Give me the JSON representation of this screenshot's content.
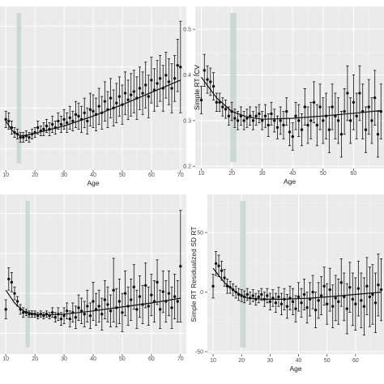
{
  "chart_data": [
    {
      "type": "scatter",
      "xlabel": "Age",
      "ylabel": "",
      "xlim": [
        8,
        72
      ],
      "ylim": [
        0,
        1
      ],
      "x_ticks": [
        10,
        20,
        30,
        40,
        50,
        60,
        70
      ],
      "y_ticks": [],
      "shaded_band": [
        13.7,
        15.3
      ],
      "x": [
        10,
        11,
        12,
        13,
        14,
        15,
        16,
        17,
        18,
        19,
        20,
        21,
        22,
        23,
        24,
        25,
        26,
        27,
        28,
        29,
        30,
        31,
        32,
        33,
        34,
        35,
        36,
        37,
        38,
        39,
        40,
        41,
        42,
        43,
        44,
        45,
        46,
        47,
        48,
        49,
        50,
        51,
        52,
        53,
        54,
        55,
        56,
        57,
        58,
        59,
        60,
        61,
        62,
        63,
        64,
        65,
        66,
        67,
        68,
        69,
        70
      ],
      "y": [
        0.31,
        0.3,
        0.26,
        0.23,
        0.22,
        0.2,
        0.2,
        0.21,
        0.2,
        0.22,
        0.23,
        0.26,
        0.24,
        0.25,
        0.27,
        0.25,
        0.28,
        0.26,
        0.3,
        0.28,
        0.31,
        0.29,
        0.32,
        0.3,
        0.34,
        0.33,
        0.31,
        0.35,
        0.3,
        0.37,
        0.36,
        0.34,
        0.39,
        0.35,
        0.42,
        0.37,
        0.44,
        0.38,
        0.41,
        0.45,
        0.4,
        0.47,
        0.43,
        0.46,
        0.48,
        0.44,
        0.5,
        0.47,
        0.52,
        0.45,
        0.55,
        0.49,
        0.53,
        0.56,
        0.5,
        0.58,
        0.54,
        0.5,
        0.56,
        0.64,
        0.63
      ],
      "err": [
        0.05,
        0.05,
        0.04,
        0.03,
        0.03,
        0.03,
        0.03,
        0.03,
        0.03,
        0.03,
        0.03,
        0.04,
        0.03,
        0.04,
        0.04,
        0.04,
        0.05,
        0.04,
        0.05,
        0.05,
        0.06,
        0.06,
        0.07,
        0.06,
        0.08,
        0.08,
        0.08,
        0.09,
        0.08,
        0.1,
        0.1,
        0.1,
        0.11,
        0.1,
        0.12,
        0.11,
        0.12,
        0.11,
        0.12,
        0.12,
        0.12,
        0.13,
        0.12,
        0.13,
        0.13,
        0.13,
        0.13,
        0.13,
        0.14,
        0.13,
        0.14,
        0.13,
        0.14,
        0.14,
        0.14,
        0.14,
        0.14,
        0.15,
        0.14,
        0.16,
        0.28
      ],
      "fit": [
        [
          10,
          0.3
        ],
        [
          12,
          0.245
        ],
        [
          14,
          0.215
        ],
        [
          16,
          0.21
        ],
        [
          20,
          0.225
        ],
        [
          30,
          0.27
        ],
        [
          40,
          0.33
        ],
        [
          50,
          0.4
        ],
        [
          60,
          0.475
        ],
        [
          70,
          0.55
        ]
      ]
    },
    {
      "type": "scatter",
      "xlabel": "Age",
      "ylabel": "Simple RT ICV",
      "xlim": [
        8,
        70
      ],
      "ylim": [
        0.195,
        0.55
      ],
      "x_ticks": [
        10,
        20,
        30,
        40,
        50,
        60
      ],
      "y_ticks": [
        0.2,
        0.3,
        0.4,
        0.5
      ],
      "shaded_band": [
        19.5,
        21.5
      ],
      "x": [
        10,
        11,
        12,
        13,
        14,
        15,
        16,
        17,
        18,
        19,
        20,
        21,
        22,
        23,
        24,
        25,
        26,
        27,
        28,
        29,
        30,
        31,
        32,
        33,
        34,
        35,
        36,
        37,
        38,
        39,
        40,
        41,
        42,
        43,
        44,
        45,
        46,
        47,
        48,
        49,
        50,
        51,
        52,
        53,
        54,
        55,
        56,
        57,
        58,
        59,
        60,
        61,
        62,
        63,
        64,
        65,
        66,
        67,
        68,
        69
      ],
      "y": [
        0.345,
        0.41,
        0.39,
        0.385,
        0.375,
        0.34,
        0.34,
        0.33,
        0.325,
        0.31,
        0.32,
        0.305,
        0.3,
        0.31,
        0.3,
        0.305,
        0.31,
        0.3,
        0.31,
        0.315,
        0.3,
        0.31,
        0.29,
        0.315,
        0.3,
        0.285,
        0.3,
        0.29,
        0.32,
        0.275,
        0.265,
        0.31,
        0.3,
        0.28,
        0.33,
        0.29,
        0.3,
        0.34,
        0.29,
        0.33,
        0.3,
        0.31,
        0.28,
        0.33,
        0.31,
        0.3,
        0.27,
        0.32,
        0.36,
        0.3,
        0.34,
        0.31,
        0.36,
        0.32,
        0.28,
        0.33,
        0.3,
        0.35,
        0.27,
        0.32
      ],
      "err": [
        0.03,
        0.035,
        0.03,
        0.03,
        0.03,
        0.02,
        0.02,
        0.02,
        0.02,
        0.02,
        0.02,
        0.02,
        0.02,
        0.02,
        0.02,
        0.02,
        0.02,
        0.02,
        0.02,
        0.02,
        0.02,
        0.025,
        0.025,
        0.025,
        0.025,
        0.025,
        0.03,
        0.03,
        0.03,
        0.03,
        0.03,
        0.03,
        0.035,
        0.035,
        0.04,
        0.04,
        0.04,
        0.045,
        0.045,
        0.05,
        0.05,
        0.05,
        0.05,
        0.05,
        0.05,
        0.05,
        0.05,
        0.05,
        0.06,
        0.05,
        0.06,
        0.05,
        0.06,
        0.06,
        0.05,
        0.06,
        0.05,
        0.06,
        0.05,
        0.06
      ],
      "fit": [
        [
          10,
          0.395
        ],
        [
          15,
          0.35
        ],
        [
          20,
          0.32
        ],
        [
          25,
          0.308
        ],
        [
          30,
          0.303
        ],
        [
          40,
          0.305
        ],
        [
          50,
          0.31
        ],
        [
          60,
          0.316
        ],
        [
          69,
          0.322
        ]
      ]
    },
    {
      "type": "scatter",
      "xlabel": "",
      "ylabel": "",
      "xlim": [
        8,
        72
      ],
      "ylim": [
        0,
        1
      ],
      "x_ticks": [
        10,
        20,
        30,
        40,
        50,
        60,
        70
      ],
      "y_ticks": [],
      "shaded_band": [
        16.8,
        18.2
      ],
      "x": [
        10,
        11,
        12,
        13,
        14,
        15,
        16,
        17,
        18,
        19,
        20,
        21,
        22,
        23,
        24,
        25,
        26,
        27,
        28,
        29,
        30,
        31,
        32,
        33,
        34,
        35,
        36,
        37,
        38,
        39,
        40,
        41,
        42,
        43,
        44,
        45,
        46,
        47,
        48,
        49,
        50,
        51,
        52,
        53,
        54,
        55,
        56,
        57,
        58,
        59,
        60,
        61,
        62,
        63,
        64,
        65,
        66,
        67,
        68,
        69,
        70
      ],
      "y": [
        0.28,
        0.47,
        0.45,
        0.38,
        0.33,
        0.28,
        0.26,
        0.26,
        0.25,
        0.25,
        0.25,
        0.24,
        0.25,
        0.24,
        0.25,
        0.24,
        0.26,
        0.23,
        0.25,
        0.22,
        0.24,
        0.27,
        0.22,
        0.26,
        0.23,
        0.29,
        0.27,
        0.25,
        0.3,
        0.24,
        0.33,
        0.28,
        0.3,
        0.25,
        0.34,
        0.31,
        0.27,
        0.4,
        0.29,
        0.33,
        0.26,
        0.38,
        0.3,
        0.34,
        0.42,
        0.28,
        0.36,
        0.31,
        0.43,
        0.3,
        0.37,
        0.33,
        0.45,
        0.28,
        0.39,
        0.33,
        0.38,
        0.29,
        0.36,
        0.33,
        0.55
      ],
      "err": [
        0.06,
        0.07,
        0.06,
        0.04,
        0.03,
        0.03,
        0.03,
        0.02,
        0.02,
        0.02,
        0.02,
        0.02,
        0.02,
        0.02,
        0.02,
        0.02,
        0.03,
        0.03,
        0.04,
        0.04,
        0.05,
        0.05,
        0.05,
        0.06,
        0.07,
        0.08,
        0.08,
        0.08,
        0.1,
        0.08,
        0.12,
        0.1,
        0.1,
        0.1,
        0.12,
        0.11,
        0.1,
        0.2,
        0.12,
        0.14,
        0.12,
        0.14,
        0.12,
        0.13,
        0.14,
        0.12,
        0.13,
        0.12,
        0.14,
        0.12,
        0.13,
        0.13,
        0.14,
        0.12,
        0.13,
        0.13,
        0.14,
        0.13,
        0.14,
        0.13,
        0.35
      ],
      "fit": [
        [
          10,
          0.4
        ],
        [
          13,
          0.32
        ],
        [
          16,
          0.27
        ],
        [
          20,
          0.25
        ],
        [
          25,
          0.245
        ],
        [
          30,
          0.25
        ],
        [
          40,
          0.27
        ],
        [
          50,
          0.295
        ],
        [
          60,
          0.32
        ],
        [
          70,
          0.35
        ]
      ]
    },
    {
      "type": "scatter",
      "xlabel": "Age",
      "ylabel": "Simple RT Residualized SD RT",
      "xlim": [
        8,
        70
      ],
      "ylim": [
        -52,
        82
      ],
      "x_ticks": [
        10,
        20,
        30,
        40,
        50,
        60
      ],
      "y_ticks": [
        -50,
        0,
        50
      ],
      "shaded_band": [
        19.5,
        21.5
      ],
      "x": [
        10,
        11,
        12,
        13,
        14,
        15,
        16,
        17,
        18,
        19,
        20,
        21,
        22,
        23,
        24,
        25,
        26,
        27,
        28,
        29,
        30,
        31,
        32,
        33,
        34,
        35,
        36,
        37,
        38,
        39,
        40,
        41,
        42,
        43,
        44,
        45,
        46,
        47,
        48,
        49,
        50,
        51,
        52,
        53,
        54,
        55,
        56,
        57,
        58,
        59,
        60,
        61,
        62,
        63,
        64,
        65,
        66,
        67,
        68,
        69
      ],
      "y": [
        5,
        24,
        22,
        18,
        12,
        5,
        4,
        2,
        0,
        -2,
        -3,
        -4,
        -2,
        -5,
        -3,
        -6,
        -4,
        -2,
        -6,
        -3,
        -8,
        -5,
        -9,
        -4,
        -10,
        -6,
        -12,
        -5,
        -8,
        -14,
        -4,
        -9,
        -2,
        -13,
        -6,
        0,
        -15,
        -7,
        -3,
        5,
        -10,
        2,
        -12,
        -5,
        -8,
        8,
        -4,
        -14,
        4,
        -6,
        -10,
        3,
        -7,
        -12,
        5,
        -4,
        -2,
        -9,
        6,
        2
      ],
      "err": [
        10,
        10,
        9,
        8,
        7,
        6,
        5,
        5,
        5,
        5,
        5,
        5,
        5,
        5,
        5,
        5,
        5,
        5,
        6,
        6,
        7,
        7,
        8,
        8,
        9,
        9,
        10,
        10,
        11,
        11,
        12,
        12,
        13,
        13,
        14,
        14,
        15,
        15,
        16,
        16,
        17,
        18,
        18,
        19,
        19,
        20,
        20,
        21,
        21,
        22,
        22,
        23,
        23,
        24,
        24,
        25,
        25,
        25,
        26,
        26
      ],
      "fit": [
        [
          10,
          20
        ],
        [
          14,
          8
        ],
        [
          18,
          0
        ],
        [
          22,
          -5
        ],
        [
          28,
          -6
        ],
        [
          35,
          -6
        ],
        [
          45,
          -5
        ],
        [
          55,
          -3
        ],
        [
          69,
          0
        ]
      ]
    }
  ]
}
